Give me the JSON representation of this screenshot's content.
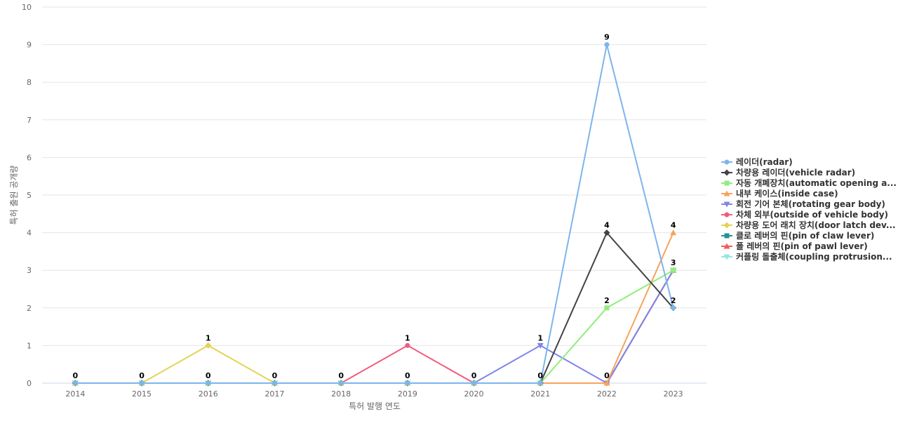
{
  "chart_data": {
    "type": "line",
    "title": "",
    "xlabel": "특허 발행 연도",
    "ylabel": "특허 출원 공개량",
    "x": [
      "2014",
      "2015",
      "2016",
      "2017",
      "2018",
      "2019",
      "2020",
      "2021",
      "2022",
      "2023"
    ],
    "ylim": [
      0,
      10
    ],
    "yticks": [
      "0",
      "1",
      "2",
      "3",
      "4",
      "5",
      "6",
      "7",
      "8",
      "9",
      "10"
    ],
    "grid": true,
    "legend_position": "right",
    "series": [
      {
        "name": "레이더(radar)",
        "color": "#7cb5ec",
        "marker": "circle",
        "values": [
          0,
          0,
          0,
          0,
          0,
          0,
          0,
          0,
          9,
          2
        ]
      },
      {
        "name": "차량용 레이더(vehicle radar)",
        "color": "#434348",
        "marker": "diamond",
        "values": [
          0,
          0,
          0,
          0,
          0,
          0,
          0,
          0,
          4,
          2
        ]
      },
      {
        "name": "자동 개폐장치(automatic opening a...",
        "color": "#90ed7d",
        "marker": "square",
        "values": [
          0,
          0,
          0,
          0,
          0,
          0,
          0,
          0,
          2,
          3
        ]
      },
      {
        "name": "내부 케이스(inside case)",
        "color": "#f7a35c",
        "marker": "triangle",
        "values": [
          0,
          0,
          0,
          0,
          0,
          0,
          0,
          0,
          0,
          4
        ]
      },
      {
        "name": "회전 기어 본체(rotating gear body)",
        "color": "#8085e9",
        "marker": "triangle-down",
        "values": [
          0,
          0,
          0,
          0,
          0,
          0,
          0,
          1,
          0,
          3
        ]
      },
      {
        "name": "차체 외부(outside of vehicle body)",
        "color": "#f15c80",
        "marker": "circle",
        "values": [
          0,
          0,
          0,
          0,
          0,
          1,
          0,
          0,
          0,
          3
        ]
      },
      {
        "name": "차량용 도어 래치 장치(door latch dev...",
        "color": "#e4d354",
        "marker": "diamond",
        "values": [
          0,
          0,
          1,
          0,
          0,
          0,
          0,
          0,
          0,
          3
        ]
      },
      {
        "name": "클로 레버의 핀(pin of claw lever)",
        "color": "#2b908f",
        "marker": "square",
        "values": [
          0,
          0,
          0,
          0,
          0,
          0,
          0,
          0,
          0,
          3
        ]
      },
      {
        "name": "폴 레버의 핀(pin of pawl lever)",
        "color": "#f45b5b",
        "marker": "triangle",
        "values": [
          0,
          0,
          0,
          0,
          0,
          0,
          0,
          0,
          0,
          3
        ]
      },
      {
        "name": "커플링 돌출체(coupling protrusion...",
        "color": "#91e8e1",
        "marker": "triangle-down",
        "values": [
          0,
          0,
          0,
          0,
          0,
          0,
          0,
          0,
          0,
          3
        ]
      }
    ],
    "data_labels": [
      {
        "x": "2014",
        "text": "0"
      },
      {
        "x": "2015",
        "text": "0"
      },
      {
        "x": "2016",
        "text": "1"
      },
      {
        "x": "2016",
        "text": "0"
      },
      {
        "x": "2017",
        "text": "0"
      },
      {
        "x": "2018",
        "text": "0"
      },
      {
        "x": "2019",
        "text": "1"
      },
      {
        "x": "2019",
        "text": "0"
      },
      {
        "x": "2020",
        "text": "0"
      },
      {
        "x": "2021",
        "text": "1"
      },
      {
        "x": "2021",
        "text": "0"
      },
      {
        "x": "2022",
        "text": "9"
      },
      {
        "x": "2022",
        "text": "4"
      },
      {
        "x": "2022",
        "text": "2"
      },
      {
        "x": "2022",
        "text": "0"
      },
      {
        "x": "2023",
        "text": "4"
      },
      {
        "x": "2023",
        "text": "3"
      },
      {
        "x": "2023",
        "text": "2"
      }
    ]
  }
}
